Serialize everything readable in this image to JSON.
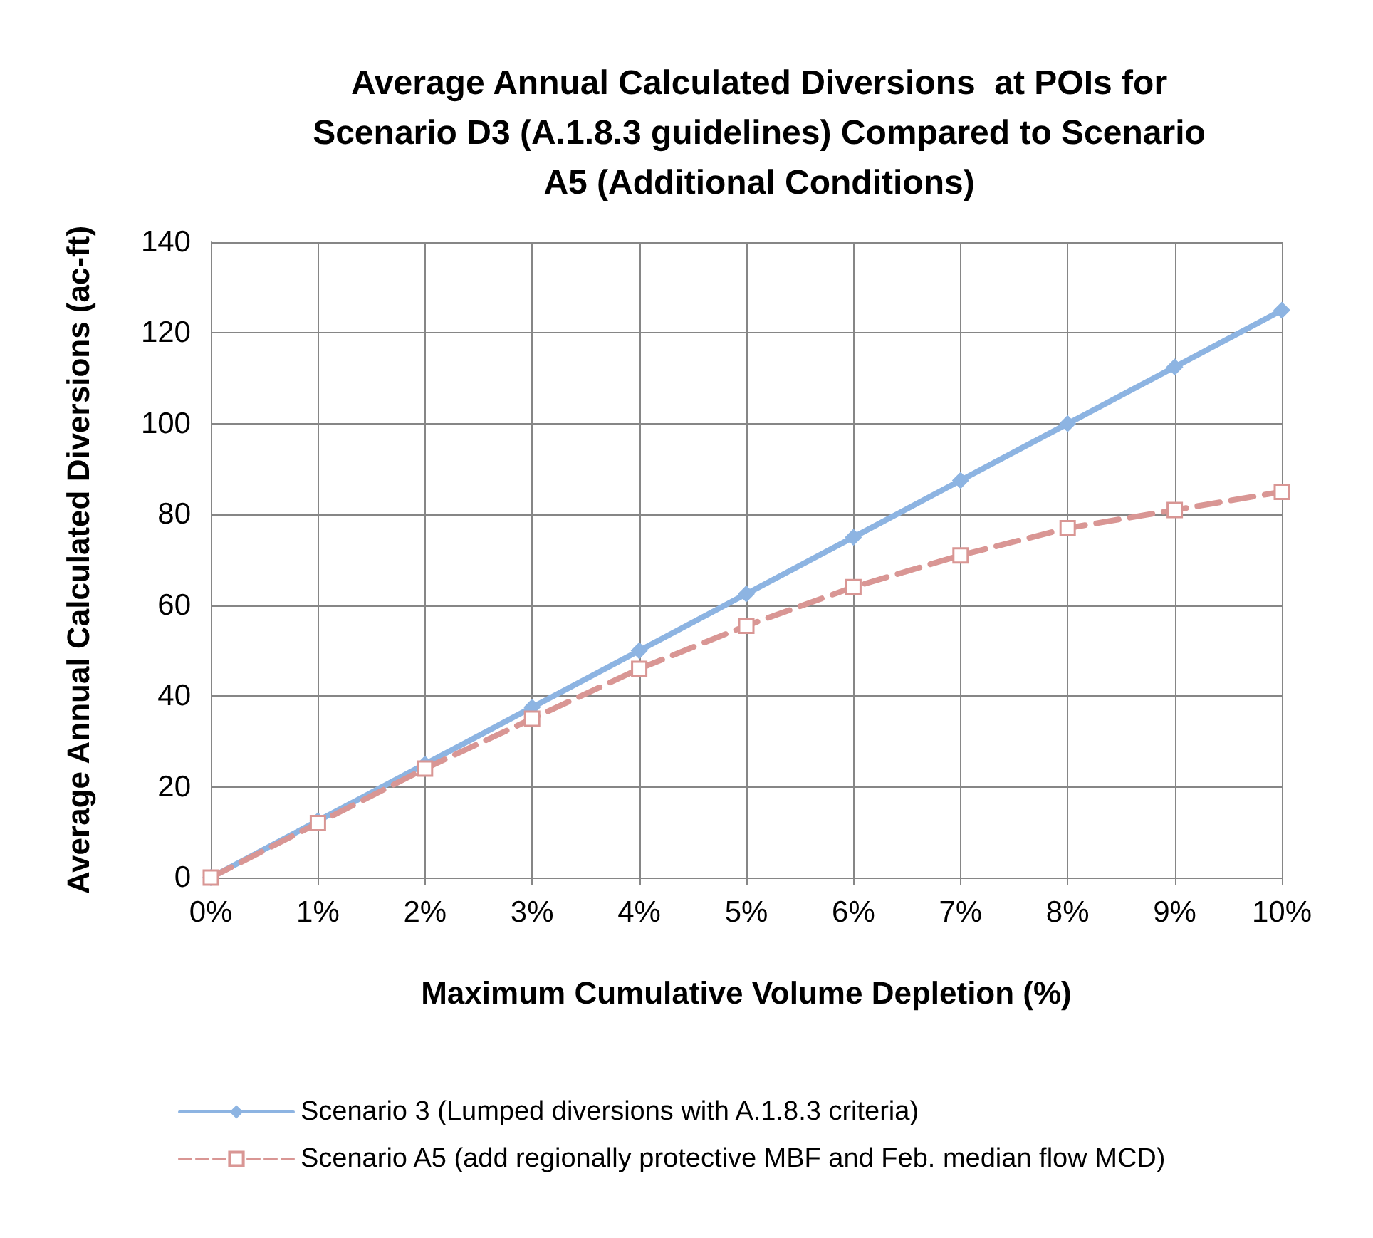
{
  "chart_data": {
    "type": "line",
    "title": "Average Annual Calculated Diversions  at POIs for\nScenario D3 (A.1.8.3 guidelines) Compared to Scenario\nA5 (Additional Conditions)",
    "xlabel": "Maximum Cumulative Volume Depletion (%)",
    "ylabel": "Average Annual Calculated Diversions (ac-ft)",
    "categories": [
      "0%",
      "1%",
      "2%",
      "3%",
      "4%",
      "5%",
      "6%",
      "7%",
      "8%",
      "9%",
      "10%"
    ],
    "series": [
      {
        "name": "Scenario 3 (Lumped diversions with A.1.8.3 criteria)",
        "color": "#8db4e2",
        "marker": "diamond",
        "line_style": "solid",
        "values": [
          0,
          12.5,
          25,
          37.5,
          50,
          62.5,
          75,
          87.5,
          100,
          112.5,
          125
        ]
      },
      {
        "name": "Scenario A5 (add regionally protective MBF and Feb. median flow MCD)",
        "color": "#d99694",
        "marker": "square",
        "line_style": "dashed",
        "values": [
          0,
          12,
          24,
          35,
          46,
          55.5,
          64,
          71,
          77,
          81,
          85
        ]
      }
    ],
    "ylim": [
      0,
      140
    ],
    "yticks": [
      0,
      20,
      40,
      60,
      80,
      100,
      120,
      140
    ],
    "grid": true,
    "legend": "bottom"
  }
}
